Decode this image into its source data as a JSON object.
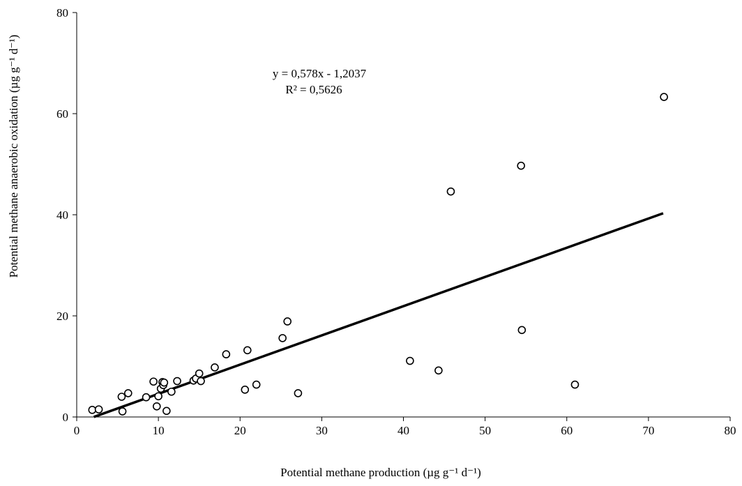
{
  "chart_data": {
    "type": "scatter",
    "title": "",
    "xlabel": "Potential methane production (µg g⁻¹ d⁻¹)",
    "ylabel": "Potential methane anaerobic oxidation (µg g⁻¹ d⁻¹)",
    "xlim": [
      0,
      80
    ],
    "ylim": [
      0,
      80
    ],
    "x_ticks": [
      0,
      10,
      20,
      30,
      40,
      50,
      60,
      70,
      80
    ],
    "y_ticks": [
      0,
      20,
      40,
      60,
      80
    ],
    "grid": false,
    "legend": "none",
    "marker": "open-circle",
    "trendline": {
      "type": "linear",
      "slope": 0.578,
      "intercept": -1.2037,
      "x_range": [
        2.1,
        71.8
      ],
      "equation_label": "y = 0,578x - 1,2037",
      "r2_label": "R² = 0,5626"
    },
    "points": [
      {
        "x": 1.9,
        "y": 1.4
      },
      {
        "x": 2.7,
        "y": 1.5
      },
      {
        "x": 5.5,
        "y": 4.0
      },
      {
        "x": 5.6,
        "y": 1.1
      },
      {
        "x": 6.3,
        "y": 4.7
      },
      {
        "x": 8.5,
        "y": 3.9
      },
      {
        "x": 9.4,
        "y": 7.0
      },
      {
        "x": 9.8,
        "y": 2.1
      },
      {
        "x": 10.0,
        "y": 4.1
      },
      {
        "x": 10.3,
        "y": 5.6
      },
      {
        "x": 10.5,
        "y": 6.9
      },
      {
        "x": 10.6,
        "y": 6.3
      },
      {
        "x": 10.7,
        "y": 6.8
      },
      {
        "x": 11.0,
        "y": 1.2
      },
      {
        "x": 11.6,
        "y": 5.0
      },
      {
        "x": 12.3,
        "y": 7.1
      },
      {
        "x": 14.3,
        "y": 7.2
      },
      {
        "x": 14.6,
        "y": 7.6
      },
      {
        "x": 15.0,
        "y": 8.6
      },
      {
        "x": 15.2,
        "y": 7.1
      },
      {
        "x": 16.9,
        "y": 9.8
      },
      {
        "x": 18.3,
        "y": 12.4
      },
      {
        "x": 20.6,
        "y": 5.4
      },
      {
        "x": 20.9,
        "y": 13.2
      },
      {
        "x": 22.0,
        "y": 6.4
      },
      {
        "x": 25.2,
        "y": 15.6
      },
      {
        "x": 25.8,
        "y": 18.9
      },
      {
        "x": 27.1,
        "y": 4.7
      },
      {
        "x": 40.8,
        "y": 11.1
      },
      {
        "x": 44.3,
        "y": 9.2
      },
      {
        "x": 45.8,
        "y": 44.6
      },
      {
        "x": 54.4,
        "y": 49.7
      },
      {
        "x": 54.5,
        "y": 17.2
      },
      {
        "x": 61.0,
        "y": 6.4
      },
      {
        "x": 71.9,
        "y": 63.3
      }
    ],
    "colors": {
      "marker_stroke": "#000000",
      "marker_fill": "#ffffff",
      "line": "#000000",
      "axis": "#000000"
    }
  }
}
